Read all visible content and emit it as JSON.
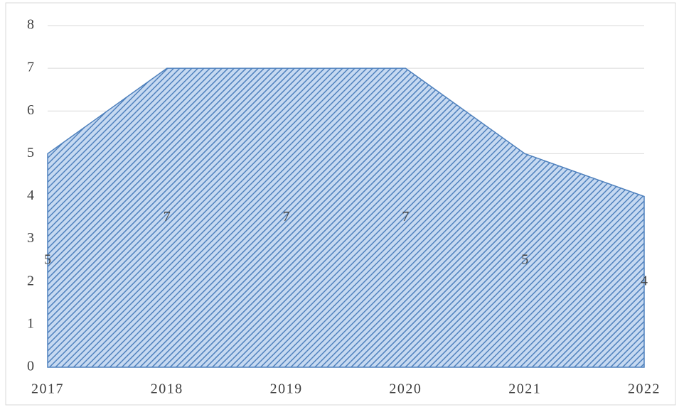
{
  "chart_data": {
    "type": "area",
    "categories": [
      "2017",
      "2018",
      "2019",
      "2020",
      "2021",
      "2022"
    ],
    "values": [
      5,
      7,
      7,
      7,
      5,
      4
    ],
    "color": "#4f81bd",
    "ylim": [
      0,
      8
    ],
    "yticks": [
      0,
      1,
      2,
      3,
      4,
      5,
      6,
      7,
      8
    ],
    "grid": true,
    "data_labels": true
  }
}
